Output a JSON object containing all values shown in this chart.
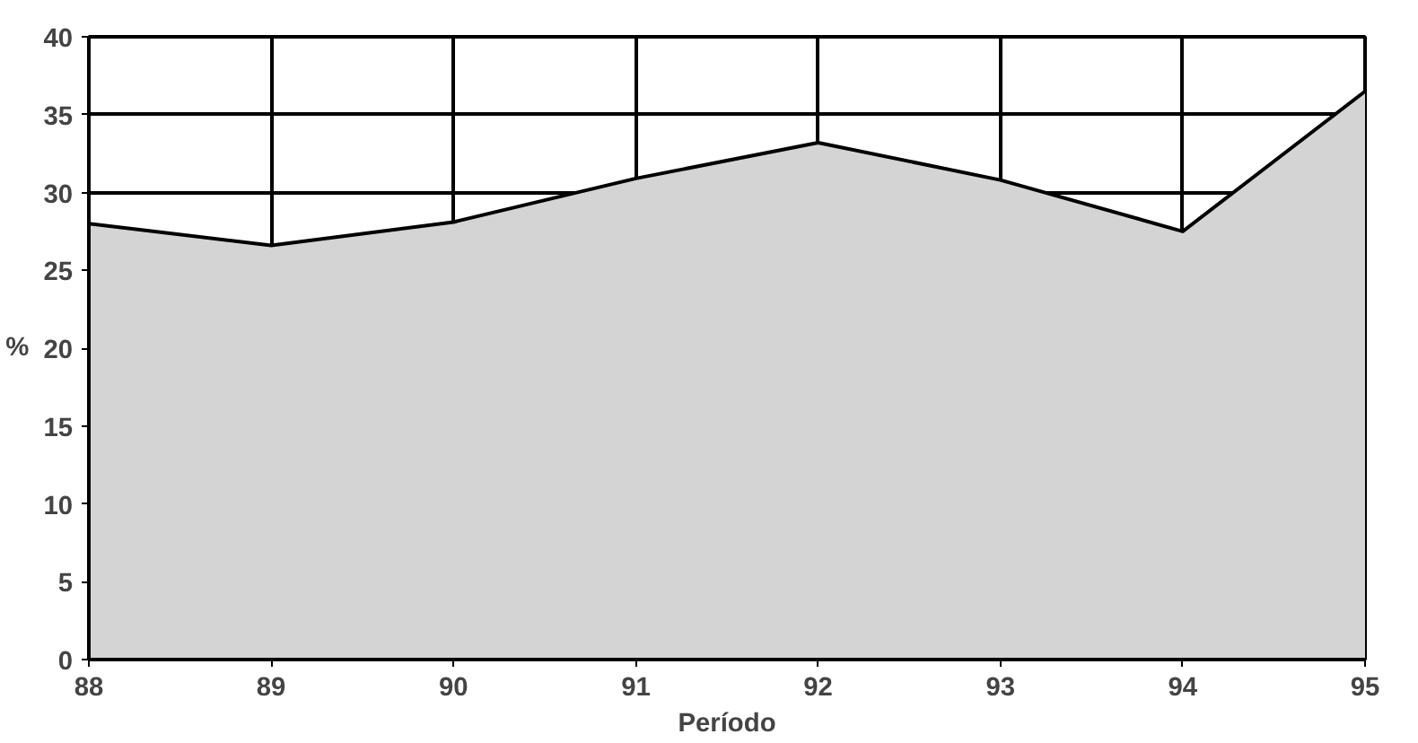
{
  "chart_data": {
    "type": "area",
    "xlabel": "Período",
    "ylabel": "%",
    "x": [
      88,
      89,
      90,
      91,
      92,
      93,
      94,
      95
    ],
    "series": [
      {
        "color": "#d4d4d4",
        "values": [
          28,
          26.6,
          28.1,
          30.9,
          33.2,
          30.8,
          27.5,
          36.5
        ]
      }
    ],
    "xlim": [
      88,
      95
    ],
    "xticks": [
      88,
      89,
      90,
      91,
      92,
      93,
      94,
      95
    ],
    "ylim": [
      0,
      40
    ],
    "yticks": [
      0,
      5,
      10,
      15,
      20,
      25,
      30,
      35,
      40
    ],
    "grid": true,
    "line_style": "solid"
  }
}
